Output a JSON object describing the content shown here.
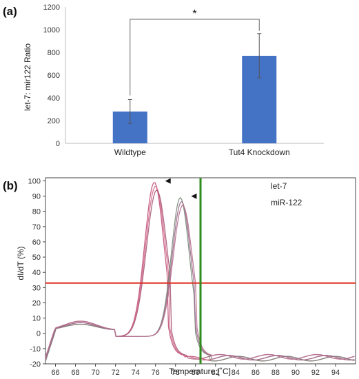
{
  "chart_data": [
    {
      "panel_label": "(a)",
      "type": "bar",
      "ylabel": "let-7: mir122 Ratio",
      "ylim": [
        0,
        1200
      ],
      "yticks": [
        0,
        200,
        400,
        600,
        800,
        1000,
        1200
      ],
      "categories": [
        "Wildtype",
        "Tut4 Knockdown"
      ],
      "values": [
        280,
        770
      ],
      "errors": [
        105,
        195
      ],
      "bar_color": "#4472c4",
      "significance": "*",
      "grid": false
    },
    {
      "panel_label": "(b)",
      "type": "line",
      "xlabel": "Temperature [˚C]",
      "ylabel": "dI/dT (%)",
      "xlim": [
        65,
        96
      ],
      "ylim": [
        -20,
        102
      ],
      "xticks": [
        66,
        68,
        70,
        72,
        74,
        76,
        78,
        80,
        82,
        84,
        86,
        88,
        90,
        92,
        94
      ],
      "yticks": [
        -20,
        -10,
        0,
        10,
        20,
        30,
        40,
        50,
        60,
        70,
        80,
        90,
        100
      ],
      "legend": [
        "let-7",
        "miR-122"
      ],
      "legend_position": "top-right",
      "threshold_y": 33,
      "threshold_color": "#e03020",
      "vertical_line_x": 80.5,
      "vertical_line_color": "#2e8b1e",
      "peaks": [
        {
          "label": "let-7",
          "x": 76,
          "y": 99
        },
        {
          "label": "miR-122",
          "x": 78.6,
          "y": 89
        }
      ],
      "curve_colors": [
        "#c0507a",
        "#d46a8a",
        "#a85a7a",
        "#7a8a7a",
        "#9a6a8a",
        "#b87090"
      ],
      "grid": false
    }
  ]
}
